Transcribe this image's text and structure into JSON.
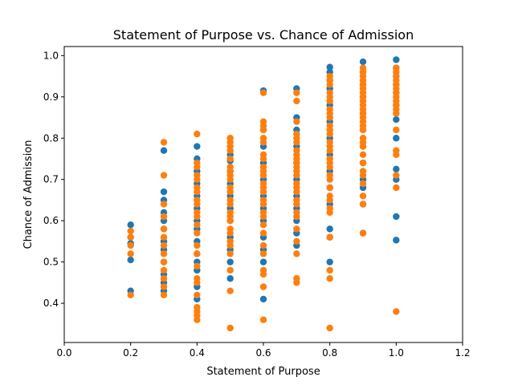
{
  "chart_data": {
    "type": "scatter",
    "title": "Statement of Purpose vs. Chance of Admission",
    "xlabel": "Statement of Purpose",
    "ylabel": "Chance of Admission",
    "xlim": [
      0.0,
      1.2
    ],
    "ylim": [
      0.305,
      1.022
    ],
    "xticks": [
      "0.0",
      "0.2",
      "0.4",
      "0.6",
      "0.8",
      "1.0",
      "1.2"
    ],
    "yticks": [
      "0.4",
      "0.5",
      "0.6",
      "0.7",
      "0.8",
      "0.9",
      "1.0"
    ],
    "grid": false,
    "legend": "none",
    "series": [
      {
        "color": "#1f77b4",
        "points": [
          [
            0.2,
            0.43
          ],
          [
            0.2,
            0.505
          ],
          [
            0.2,
            0.545
          ],
          [
            0.2,
            0.56
          ],
          [
            0.2,
            0.59
          ],
          [
            0.3,
            0.43
          ],
          [
            0.3,
            0.45
          ],
          [
            0.3,
            0.47
          ],
          [
            0.3,
            0.5
          ],
          [
            0.3,
            0.53
          ],
          [
            0.3,
            0.55
          ],
          [
            0.3,
            0.58
          ],
          [
            0.3,
            0.6
          ],
          [
            0.3,
            0.62
          ],
          [
            0.3,
            0.65
          ],
          [
            0.3,
            0.67
          ],
          [
            0.3,
            0.77
          ],
          [
            0.4,
            0.41
          ],
          [
            0.4,
            0.44
          ],
          [
            0.4,
            0.48
          ],
          [
            0.4,
            0.5
          ],
          [
            0.4,
            0.52
          ],
          [
            0.4,
            0.55
          ],
          [
            0.4,
            0.58
          ],
          [
            0.4,
            0.6
          ],
          [
            0.4,
            0.63
          ],
          [
            0.4,
            0.66
          ],
          [
            0.4,
            0.69
          ],
          [
            0.4,
            0.72
          ],
          [
            0.4,
            0.75
          ],
          [
            0.4,
            0.78
          ],
          [
            0.5,
            0.46
          ],
          [
            0.5,
            0.5
          ],
          [
            0.5,
            0.53
          ],
          [
            0.5,
            0.56
          ],
          [
            0.5,
            0.6
          ],
          [
            0.5,
            0.63
          ],
          [
            0.5,
            0.66
          ],
          [
            0.5,
            0.69
          ],
          [
            0.5,
            0.72
          ],
          [
            0.5,
            0.745
          ],
          [
            0.5,
            0.76
          ],
          [
            0.6,
            0.41
          ],
          [
            0.6,
            0.5
          ],
          [
            0.6,
            0.53
          ],
          [
            0.6,
            0.56
          ],
          [
            0.6,
            0.6
          ],
          [
            0.6,
            0.63
          ],
          [
            0.6,
            0.66
          ],
          [
            0.6,
            0.7
          ],
          [
            0.6,
            0.74
          ],
          [
            0.6,
            0.78
          ],
          [
            0.6,
            0.82
          ],
          [
            0.6,
            0.915
          ],
          [
            0.7,
            0.54
          ],
          [
            0.7,
            0.57
          ],
          [
            0.7,
            0.6
          ],
          [
            0.7,
            0.63
          ],
          [
            0.7,
            0.66
          ],
          [
            0.7,
            0.7
          ],
          [
            0.7,
            0.74
          ],
          [
            0.7,
            0.78
          ],
          [
            0.7,
            0.82
          ],
          [
            0.7,
            0.85
          ],
          [
            0.7,
            0.92
          ],
          [
            0.8,
            0.5
          ],
          [
            0.8,
            0.56
          ],
          [
            0.8,
            0.58
          ],
          [
            0.8,
            0.64
          ],
          [
            0.8,
            0.68
          ],
          [
            0.8,
            0.72
          ],
          [
            0.8,
            0.76
          ],
          [
            0.8,
            0.8
          ],
          [
            0.8,
            0.84
          ],
          [
            0.8,
            0.88
          ],
          [
            0.8,
            0.92
          ],
          [
            0.8,
            0.94
          ],
          [
            0.8,
            0.96
          ],
          [
            0.8,
            0.972
          ],
          [
            0.9,
            0.57
          ],
          [
            0.9,
            0.64
          ],
          [
            0.9,
            0.68
          ],
          [
            0.9,
            0.7
          ],
          [
            0.9,
            0.74
          ],
          [
            0.9,
            0.78
          ],
          [
            0.9,
            0.82
          ],
          [
            0.9,
            0.86
          ],
          [
            0.9,
            0.9
          ],
          [
            0.9,
            0.93
          ],
          [
            0.9,
            0.96
          ],
          [
            0.9,
            0.985
          ],
          [
            1.0,
            0.553
          ],
          [
            1.0,
            0.61
          ],
          [
            1.0,
            0.7
          ],
          [
            1.0,
            0.725
          ],
          [
            1.0,
            0.8
          ],
          [
            1.0,
            0.845
          ],
          [
            1.0,
            0.88
          ],
          [
            1.0,
            0.91
          ],
          [
            1.0,
            0.93
          ],
          [
            1.0,
            0.95
          ],
          [
            1.0,
            0.97
          ],
          [
            1.0,
            0.99
          ]
        ]
      },
      {
        "color": "#ff7f0e",
        "points": [
          [
            0.2,
            0.42
          ],
          [
            0.2,
            0.52
          ],
          [
            0.2,
            0.54
          ],
          [
            0.2,
            0.56
          ],
          [
            0.2,
            0.575
          ],
          [
            0.3,
            0.42
          ],
          [
            0.3,
            0.44
          ],
          [
            0.3,
            0.46
          ],
          [
            0.3,
            0.48
          ],
          [
            0.3,
            0.5
          ],
          [
            0.3,
            0.52
          ],
          [
            0.3,
            0.54
          ],
          [
            0.3,
            0.56
          ],
          [
            0.3,
            0.58
          ],
          [
            0.3,
            0.61
          ],
          [
            0.3,
            0.64
          ],
          [
            0.3,
            0.71
          ],
          [
            0.3,
            0.79
          ],
          [
            0.4,
            0.36
          ],
          [
            0.4,
            0.37
          ],
          [
            0.4,
            0.38
          ],
          [
            0.4,
            0.39
          ],
          [
            0.4,
            0.42
          ],
          [
            0.4,
            0.45
          ],
          [
            0.4,
            0.46
          ],
          [
            0.4,
            0.49
          ],
          [
            0.4,
            0.52
          ],
          [
            0.4,
            0.54
          ],
          [
            0.4,
            0.57
          ],
          [
            0.4,
            0.59
          ],
          [
            0.4,
            0.61
          ],
          [
            0.4,
            0.62
          ],
          [
            0.4,
            0.64
          ],
          [
            0.4,
            0.65
          ],
          [
            0.4,
            0.67
          ],
          [
            0.4,
            0.68
          ],
          [
            0.4,
            0.7
          ],
          [
            0.4,
            0.71
          ],
          [
            0.4,
            0.73
          ],
          [
            0.4,
            0.74
          ],
          [
            0.4,
            0.81
          ],
          [
            0.5,
            0.34
          ],
          [
            0.5,
            0.43
          ],
          [
            0.5,
            0.48
          ],
          [
            0.5,
            0.52
          ],
          [
            0.5,
            0.54
          ],
          [
            0.5,
            0.55
          ],
          [
            0.5,
            0.57
          ],
          [
            0.5,
            0.58
          ],
          [
            0.5,
            0.6
          ],
          [
            0.5,
            0.61
          ],
          [
            0.5,
            0.62
          ],
          [
            0.5,
            0.64
          ],
          [
            0.5,
            0.65
          ],
          [
            0.5,
            0.67
          ],
          [
            0.5,
            0.68
          ],
          [
            0.5,
            0.7
          ],
          [
            0.5,
            0.71
          ],
          [
            0.5,
            0.72
          ],
          [
            0.5,
            0.73
          ],
          [
            0.5,
            0.75
          ],
          [
            0.5,
            0.77
          ],
          [
            0.5,
            0.78
          ],
          [
            0.5,
            0.79
          ],
          [
            0.5,
            0.8
          ],
          [
            0.6,
            0.36
          ],
          [
            0.6,
            0.44
          ],
          [
            0.6,
            0.47
          ],
          [
            0.6,
            0.48
          ],
          [
            0.6,
            0.52
          ],
          [
            0.6,
            0.54
          ],
          [
            0.6,
            0.57
          ],
          [
            0.6,
            0.59
          ],
          [
            0.6,
            0.61
          ],
          [
            0.6,
            0.62
          ],
          [
            0.6,
            0.64
          ],
          [
            0.6,
            0.65
          ],
          [
            0.6,
            0.67
          ],
          [
            0.6,
            0.68
          ],
          [
            0.6,
            0.69
          ],
          [
            0.6,
            0.71
          ],
          [
            0.6,
            0.72
          ],
          [
            0.6,
            0.73
          ],
          [
            0.6,
            0.75
          ],
          [
            0.6,
            0.76
          ],
          [
            0.6,
            0.79
          ],
          [
            0.6,
            0.8
          ],
          [
            0.6,
            0.82
          ],
          [
            0.6,
            0.83
          ],
          [
            0.6,
            0.84
          ],
          [
            0.6,
            0.91
          ],
          [
            0.7,
            0.45
          ],
          [
            0.7,
            0.46
          ],
          [
            0.7,
            0.52
          ],
          [
            0.7,
            0.55
          ],
          [
            0.7,
            0.58
          ],
          [
            0.7,
            0.61
          ],
          [
            0.7,
            0.62
          ],
          [
            0.7,
            0.64
          ],
          [
            0.7,
            0.65
          ],
          [
            0.7,
            0.67
          ],
          [
            0.7,
            0.68
          ],
          [
            0.7,
            0.69
          ],
          [
            0.7,
            0.71
          ],
          [
            0.7,
            0.72
          ],
          [
            0.7,
            0.73
          ],
          [
            0.7,
            0.74
          ],
          [
            0.7,
            0.75
          ],
          [
            0.7,
            0.76
          ],
          [
            0.7,
            0.77
          ],
          [
            0.7,
            0.79
          ],
          [
            0.7,
            0.8
          ],
          [
            0.7,
            0.81
          ],
          [
            0.7,
            0.84
          ],
          [
            0.7,
            0.89
          ],
          [
            0.7,
            0.91
          ],
          [
            0.8,
            0.34
          ],
          [
            0.8,
            0.46
          ],
          [
            0.8,
            0.48
          ],
          [
            0.8,
            0.56
          ],
          [
            0.8,
            0.62
          ],
          [
            0.8,
            0.63
          ],
          [
            0.8,
            0.65
          ],
          [
            0.8,
            0.66
          ],
          [
            0.8,
            0.68
          ],
          [
            0.8,
            0.7
          ],
          [
            0.8,
            0.71
          ],
          [
            0.8,
            0.73
          ],
          [
            0.8,
            0.74
          ],
          [
            0.8,
            0.75
          ],
          [
            0.8,
            0.77
          ],
          [
            0.8,
            0.78
          ],
          [
            0.8,
            0.79
          ],
          [
            0.8,
            0.81
          ],
          [
            0.8,
            0.82
          ],
          [
            0.8,
            0.83
          ],
          [
            0.8,
            0.85
          ],
          [
            0.8,
            0.86
          ],
          [
            0.8,
            0.87
          ],
          [
            0.8,
            0.89
          ],
          [
            0.8,
            0.9
          ],
          [
            0.8,
            0.91
          ],
          [
            0.8,
            0.93
          ],
          [
            0.8,
            0.94
          ],
          [
            0.8,
            0.95
          ],
          [
            0.9,
            0.57
          ],
          [
            0.9,
            0.64
          ],
          [
            0.9,
            0.66
          ],
          [
            0.9,
            0.69
          ],
          [
            0.9,
            0.71
          ],
          [
            0.9,
            0.72
          ],
          [
            0.9,
            0.74
          ],
          [
            0.9,
            0.76
          ],
          [
            0.9,
            0.78
          ],
          [
            0.9,
            0.79
          ],
          [
            0.9,
            0.8
          ],
          [
            0.9,
            0.82
          ],
          [
            0.9,
            0.83
          ],
          [
            0.9,
            0.84
          ],
          [
            0.9,
            0.85
          ],
          [
            0.9,
            0.86
          ],
          [
            0.9,
            0.87
          ],
          [
            0.9,
            0.88
          ],
          [
            0.9,
            0.89
          ],
          [
            0.9,
            0.9
          ],
          [
            0.9,
            0.91
          ],
          [
            0.9,
            0.92
          ],
          [
            0.9,
            0.93
          ],
          [
            0.9,
            0.94
          ],
          [
            0.9,
            0.95
          ],
          [
            0.9,
            0.96
          ],
          [
            0.9,
            0.97
          ],
          [
            1.0,
            0.38
          ],
          [
            1.0,
            0.68
          ],
          [
            1.0,
            0.71
          ],
          [
            1.0,
            0.76
          ],
          [
            1.0,
            0.77
          ],
          [
            1.0,
            0.82
          ],
          [
            1.0,
            0.86
          ],
          [
            1.0,
            0.87
          ],
          [
            1.0,
            0.88
          ],
          [
            1.0,
            0.89
          ],
          [
            1.0,
            0.9
          ],
          [
            1.0,
            0.91
          ],
          [
            1.0,
            0.92
          ],
          [
            1.0,
            0.93
          ],
          [
            1.0,
            0.94
          ],
          [
            1.0,
            0.95
          ],
          [
            1.0,
            0.96
          ],
          [
            1.0,
            0.97
          ]
        ]
      }
    ]
  }
}
